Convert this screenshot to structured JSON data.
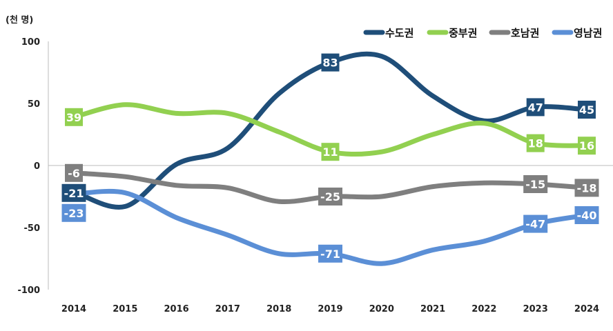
{
  "chart_data": {
    "type": "line",
    "unit_label": "(천 명)",
    "x": [
      "2014",
      "2015",
      "2016",
      "2017",
      "2018",
      "2019",
      "2020",
      "2021",
      "2022",
      "2023",
      "2024"
    ],
    "ylim": [
      -100,
      100
    ],
    "yticks": [
      100,
      50,
      0,
      -50,
      -100
    ],
    "legend_position": "top-right",
    "labeled_years": [
      "2014",
      "2019",
      "2023",
      "2024"
    ],
    "series": [
      {
        "name": "수도권",
        "color": "#1f4e79",
        "values": [
          -21,
          -33,
          1,
          14,
          58,
          83,
          88,
          56,
          36,
          47,
          45
        ]
      },
      {
        "name": "중부권",
        "color": "#92d050",
        "values": [
          39,
          49,
          42,
          42,
          27,
          11,
          11,
          25,
          34,
          18,
          16
        ]
      },
      {
        "name": "호남권",
        "color": "#7f7f7f",
        "values": [
          -6,
          -9,
          -16,
          -18,
          -29,
          -25,
          -25,
          -17,
          -14,
          -15,
          -18
        ]
      },
      {
        "name": "영남권",
        "color": "#5b8fd6",
        "values": [
          -23,
          -22,
          -42,
          -56,
          -71,
          -71,
          -79,
          -68,
          -61,
          -47,
          -40
        ]
      }
    ]
  }
}
